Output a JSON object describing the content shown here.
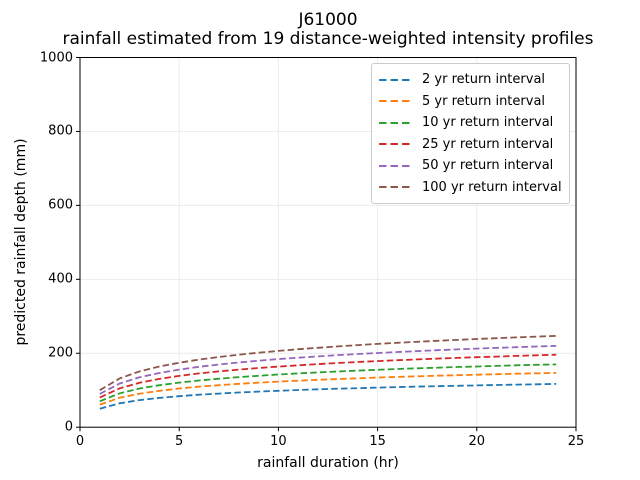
{
  "figure": {
    "title_line1": "J61000",
    "title_line2": "rainfall estimated from 19 distance-weighted intensity profiles",
    "xlabel": "rainfall duration (hr)",
    "ylabel": "predicted rainfall depth (mm)"
  },
  "chart_data": {
    "type": "line",
    "title": "J61000\nrainfall estimated from 19 distance-weighted intensity profiles",
    "xlabel": "rainfall duration (hr)",
    "ylabel": "predicted rainfall depth (mm)",
    "xlim": [
      0,
      25
    ],
    "ylim": [
      0,
      1000
    ],
    "x_ticks": [
      0,
      5,
      10,
      15,
      20,
      25
    ],
    "y_ticks": [
      0,
      200,
      400,
      600,
      800,
      1000
    ],
    "grid": true,
    "grid_color": "#ececec",
    "line_style": "dashed",
    "legend_position": "upper right",
    "x": [
      1,
      2,
      3,
      4,
      5,
      6,
      7,
      8,
      9,
      10,
      11,
      12,
      13,
      14,
      15,
      16,
      17,
      18,
      19,
      20,
      21,
      22,
      23,
      24
    ],
    "series": [
      {
        "name": "2 yr return interval",
        "color": "#1f77b4",
        "values": [
          50,
          64.6,
          73.2,
          79.2,
          83.9,
          87.8,
          91,
          93.8,
          96.3,
          98.5,
          100.5,
          102.4,
          104.1,
          105.6,
          107.1,
          108.4,
          109.7,
          110.9,
          112.1,
          113.1,
          114.2,
          115.2,
          116.1,
          117
        ]
      },
      {
        "name": "5 yr return interval",
        "color": "#ff7f0e",
        "values": [
          61,
          79.8,
          90.7,
          98.5,
          104.6,
          109.5,
          113.7,
          117.3,
          120.5,
          123.3,
          125.9,
          128.2,
          130.4,
          132.4,
          134.3,
          136,
          137.7,
          139.2,
          140.7,
          142.1,
          143.4,
          144.6,
          145.8,
          147
        ]
      },
      {
        "name": "10 yr return interval",
        "color": "#2ca02c",
        "values": [
          70,
          91.8,
          104.6,
          113.6,
          120.7,
          126.4,
          131.2,
          135.4,
          139.1,
          142.5,
          145.5,
          148.2,
          150.7,
          153.1,
          155.2,
          157.3,
          159.2,
          161,
          162.7,
          164.3,
          165.8,
          167.3,
          168.7,
          170
        ]
      },
      {
        "name": "25 yr return interval",
        "color": "#d62728",
        "values": [
          80,
          105.3,
          120.1,
          130.6,
          138.7,
          145.4,
          151,
          155.9,
          160.2,
          164,
          167.5,
          170.7,
          173.6,
          176.3,
          178.8,
          181.2,
          183.4,
          185.5,
          187.5,
          189.3,
          191.1,
          192.8,
          194.4,
          196
        ]
      },
      {
        "name": "50 yr return interval",
        "color": "#9467bd",
        "values": [
          90,
          118.3,
          134.9,
          146.7,
          155.8,
          163.3,
          169.6,
          175,
          179.9,
          184.2,
          188.1,
          191.6,
          194.9,
          197.9,
          200.8,
          203.4,
          205.9,
          208.2,
          210.4,
          212.5,
          214.5,
          216.4,
          218.2,
          220
        ]
      },
      {
        "name": "100 yr return interval",
        "color": "#8c564b",
        "values": [
          100,
          132.1,
          150.8,
          164.1,
          174.4,
          182.9,
          190,
          196.2,
          201.6,
          206.5,
          210.9,
          214.9,
          218.6,
          222.1,
          225.3,
          228.2,
          231,
          233.7,
          236.2,
          238.6,
          240.8,
          243,
          245,
          247
        ]
      }
    ]
  }
}
